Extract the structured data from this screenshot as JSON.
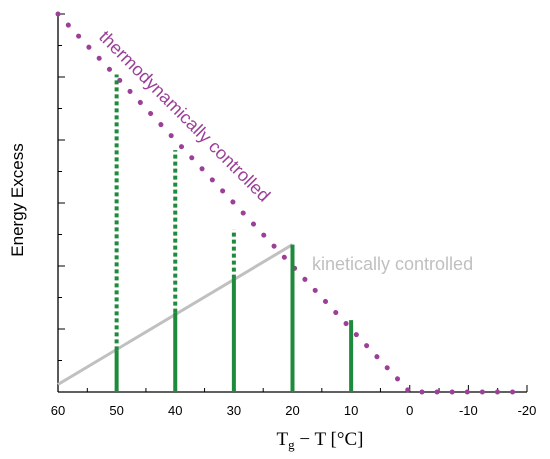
{
  "colors": {
    "thermo": "#9b3f97",
    "kinetic": "#c0c0c0",
    "bars": "#1e8a3c",
    "axis": "#000000"
  },
  "chart_data": {
    "type": "line",
    "title": "",
    "ylabel": "Energy Excess",
    "xlabel": {
      "main": "T",
      "sub": "g",
      "rest": " − T [°C]"
    },
    "x_reversed": true,
    "xlim": [
      60,
      -20
    ],
    "ylim": [
      0,
      10
    ],
    "x_ticks": [
      60,
      50,
      40,
      30,
      20,
      10,
      0,
      -10,
      -20
    ],
    "x_tick_labels": [
      "60",
      "50",
      "40",
      "30",
      "20",
      "10",
      "0",
      "-10",
      "-20"
    ],
    "y_tick_labels_shown": false,
    "grid": false,
    "series": [
      {
        "name": "thermodynamically controlled",
        "style": "dotted",
        "x": [
          60,
          0,
          -20
        ],
        "y": [
          10,
          0,
          0
        ]
      },
      {
        "name": "kinetically controlled",
        "style": "solid",
        "x": [
          60,
          20
        ],
        "y": [
          0.2,
          3.9
        ]
      }
    ],
    "bars": [
      {
        "x": 50,
        "solid_top": 1.1,
        "dotted_top": 8.4
      },
      {
        "x": 40,
        "solid_top": 2.1,
        "dotted_top": 6.4
      },
      {
        "x": 30,
        "solid_top": 3.0,
        "dotted_top": 4.3
      },
      {
        "x": 20,
        "solid_top": 3.9,
        "dotted_top": 3.9
      },
      {
        "x": 10,
        "solid_top": 1.9,
        "dotted_top": 1.9
      }
    ],
    "annotations": [
      {
        "text": "thermodynamically controlled",
        "series": "thermo"
      },
      {
        "text": "kinetically controlled",
        "series": "kinetic"
      }
    ]
  }
}
